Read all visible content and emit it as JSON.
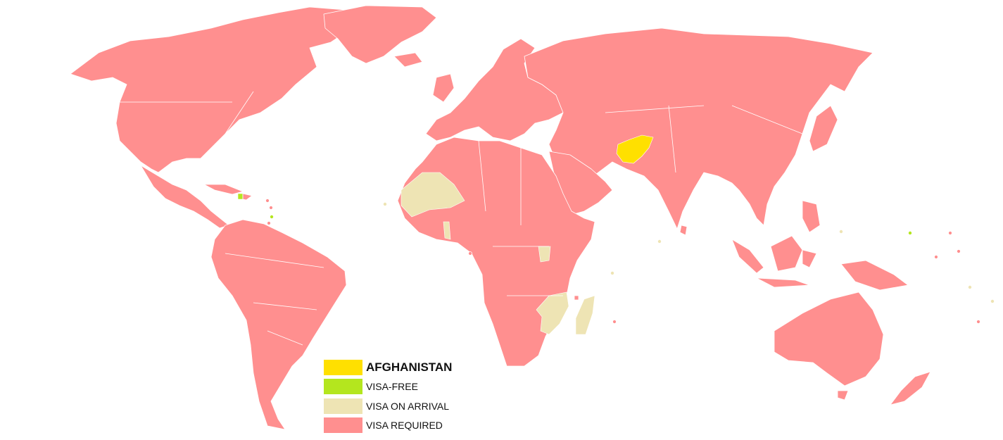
{
  "colors": {
    "home": "#ffe000",
    "visa_free": "#b4e61e",
    "visa_on_arrival": "#eee4b4",
    "visa_required": "#ff8f8f",
    "background": "#ffffff"
  },
  "legend": [
    {
      "key": "home",
      "label": "AFGHANISTAN",
      "color": "#ffe000"
    },
    {
      "key": "visa_free",
      "label": "VISA-FREE",
      "color": "#b4e61e"
    },
    {
      "key": "visa_on_arrival",
      "label": "VISA ON ARRIVAL",
      "color": "#eee4b4"
    },
    {
      "key": "visa_required",
      "label": "VISA REQUIRED",
      "color": "#ff8f8f"
    }
  ]
}
